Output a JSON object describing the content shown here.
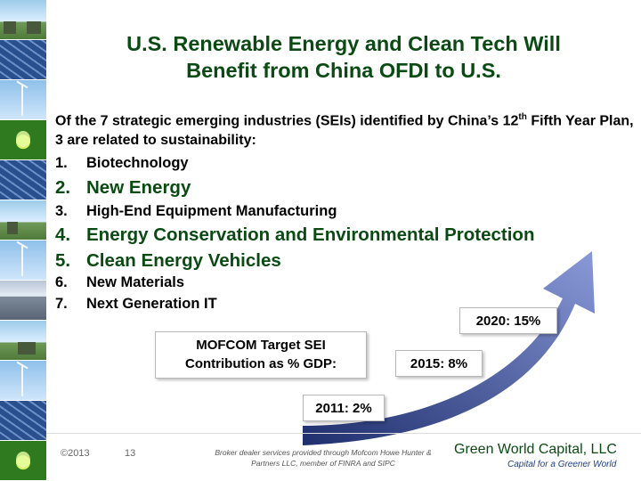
{
  "slide": {
    "title_line1": "U.S. Renewable Energy and Clean Tech Will",
    "title_line2": "Benefit from China OFDI to U.S.",
    "intro_part1": "Of the 7 strategic emerging industries (SEIs) identified by China’s 12",
    "intro_sup": "th",
    "intro_part2": " Fifth Year Plan, 3 are related to sustainability:",
    "items": [
      {
        "num": "1.",
        "text": "Biotechnology"
      },
      {
        "num": "2.",
        "text": "New Energy"
      },
      {
        "num": "3.",
        "text": "High-End Equipment Manufacturing"
      },
      {
        "num": "4.",
        "text": "Energy Conservation and Environmental Protection"
      },
      {
        "num": "5.",
        "text": "Clean Energy Vehicles"
      },
      {
        "num": "6.",
        "text": "New Materials"
      },
      {
        "num": "7.",
        "text": "Next Generation IT"
      }
    ],
    "mofcom_line1": "MOFCOM Target SEI",
    "mofcom_line2": "Contribution as % GDP:",
    "callout_2020": "2020: 15%",
    "callout_2015": "2015: 8%",
    "callout_2011": "2011: 2%"
  },
  "footer": {
    "copyright": "©2013",
    "page_number": "13",
    "disclaimer_line1": "Broker dealer services provided through Mofcom Howe Hunter &",
    "disclaimer_line2": "Partners LLC, member of FINRA and SIPC",
    "company": "Green World Capital, LLC",
    "tagline": "Capital for a Greener World"
  },
  "colors": {
    "title": "#0a4a13",
    "arrow_dark": "#1f2f6e",
    "arrow_light": "#8a9ad8",
    "tagline": "#1e3f8a"
  }
}
